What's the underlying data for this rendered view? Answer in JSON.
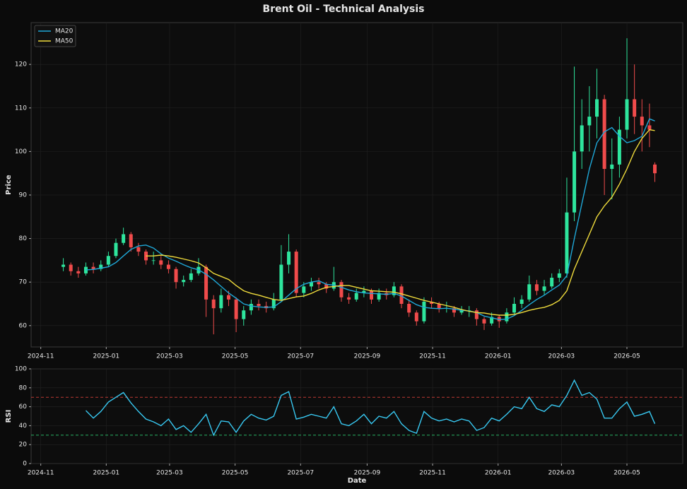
{
  "chart_data": [
    {
      "type": "candlestick",
      "title": "Brent Oil - Technical Analysis",
      "y_label": "Price",
      "x": [
        "2024-11-22",
        "2024-11-29",
        "2024-12-06",
        "2024-12-13",
        "2024-12-20",
        "2024-12-27",
        "2025-01-03",
        "2025-01-10",
        "2025-01-17",
        "2025-01-24",
        "2025-01-31",
        "2025-02-07",
        "2025-02-14",
        "2025-02-21",
        "2025-02-28",
        "2025-03-07",
        "2025-03-14",
        "2025-03-21",
        "2025-03-28",
        "2025-04-04",
        "2025-04-11",
        "2025-04-18",
        "2025-04-25",
        "2025-05-02",
        "2025-05-09",
        "2025-05-16",
        "2025-05-23",
        "2025-05-30",
        "2025-06-06",
        "2025-06-13",
        "2025-06-20",
        "2025-06-27",
        "2025-07-04",
        "2025-07-11",
        "2025-07-18",
        "2025-07-25",
        "2025-08-01",
        "2025-08-08",
        "2025-08-15",
        "2025-08-22",
        "2025-08-29",
        "2025-09-05",
        "2025-09-12",
        "2025-09-19",
        "2025-09-26",
        "2025-10-03",
        "2025-10-10",
        "2025-10-17",
        "2025-10-24",
        "2025-10-31",
        "2025-11-07",
        "2025-11-14",
        "2025-11-21",
        "2025-11-28",
        "2025-12-05",
        "2025-12-12",
        "2025-12-19",
        "2025-12-26",
        "2026-01-02",
        "2026-01-09",
        "2026-01-16",
        "2026-01-23",
        "2026-01-30",
        "2026-02-06",
        "2026-02-13",
        "2026-02-20",
        "2026-02-27",
        "2026-03-06",
        "2026-03-13",
        "2026-03-20",
        "2026-03-27",
        "2026-04-03",
        "2026-04-10",
        "2026-04-17",
        "2026-04-24",
        "2026-05-01",
        "2026-05-08",
        "2026-05-15",
        "2026-05-22",
        "2026-05-27"
      ],
      "open": [
        73.5,
        74,
        72.5,
        72,
        73.5,
        73,
        74,
        76,
        79,
        81,
        78,
        77,
        75,
        75,
        74,
        73,
        70,
        70.5,
        72,
        73.5,
        66,
        64,
        67,
        66,
        61.5,
        63.5,
        65,
        64.5,
        64,
        66,
        74,
        77,
        67.5,
        69,
        70,
        69.5,
        68.5,
        70,
        66.5,
        66,
        67.5,
        68,
        66,
        67.5,
        67,
        69,
        65,
        63,
        61,
        65.5,
        65,
        64,
        64,
        63,
        63.5,
        63.5,
        61.5,
        60.5,
        62,
        61,
        63,
        65,
        66,
        69.5,
        68,
        69,
        71,
        72,
        86,
        100,
        106,
        108,
        112,
        96,
        97,
        105,
        112,
        108,
        106,
        97
      ],
      "high": [
        75.5,
        74.5,
        73.5,
        74.5,
        74.5,
        75,
        77,
        80,
        82.5,
        81.5,
        79,
        77.5,
        77,
        76,
        75,
        73.5,
        71.5,
        73,
        75.5,
        74,
        67,
        68.5,
        68,
        66.5,
        64.5,
        66,
        66,
        65.5,
        67.5,
        78.5,
        81,
        77.5,
        70,
        71,
        71,
        70,
        73.5,
        70.5,
        67.5,
        68.5,
        69,
        68.5,
        68.5,
        68.5,
        70,
        69.5,
        66,
        63.5,
        66.5,
        66.5,
        65.5,
        65.5,
        64.5,
        64.5,
        64.5,
        64,
        62,
        63,
        62.5,
        64,
        66.5,
        67,
        71.5,
        70.5,
        70.5,
        72,
        73,
        94,
        119.5,
        112,
        115,
        119,
        113,
        103,
        108,
        126,
        120,
        112,
        111,
        97.5
      ],
      "low": [
        72.5,
        71.5,
        71,
        71.5,
        72,
        72.5,
        73.5,
        75.5,
        78.5,
        77,
        76,
        74,
        74,
        73,
        72,
        68.5,
        69,
        70,
        71.5,
        62,
        58,
        63,
        64.5,
        58.5,
        60,
        62.5,
        63.5,
        63,
        63.5,
        65.5,
        72,
        66.5,
        66.5,
        68,
        68.5,
        67.5,
        68,
        65.5,
        65,
        65.5,
        66.5,
        65,
        65.5,
        66,
        66.5,
        64,
        62,
        60,
        60.5,
        64,
        63,
        63,
        62,
        62.5,
        62,
        60,
        59,
        60,
        59.5,
        60.5,
        62.5,
        64,
        65.5,
        67,
        67,
        68.5,
        70,
        71,
        84,
        96,
        100,
        103,
        90,
        89,
        94,
        103,
        104,
        100,
        101,
        93
      ],
      "close": [
        74,
        72.5,
        72,
        73.5,
        73,
        74,
        76,
        79,
        81,
        78,
        77,
        75,
        75,
        74,
        73,
        70,
        70.5,
        72,
        73.5,
        66,
        64,
        67,
        66,
        61.5,
        63.5,
        65,
        64.5,
        64,
        66,
        74,
        77,
        67.5,
        69,
        70,
        69.5,
        68.5,
        70,
        66.5,
        66,
        67.5,
        68,
        66,
        67.5,
        67,
        69,
        65,
        63,
        61,
        65.5,
        65,
        64,
        64,
        63,
        63.5,
        63.5,
        61.5,
        60.5,
        62,
        61,
        63,
        65,
        66,
        69.5,
        68,
        69,
        71,
        72,
        86,
        100,
        106,
        108,
        112,
        96,
        97,
        105,
        112,
        108,
        106,
        105,
        95
      ],
      "up_color": "#2ee59d",
      "down_color": "#f04b4b",
      "series": [
        {
          "name": "MA20",
          "color": "#1fa8d8",
          "values": [
            null,
            null,
            null,
            72.8,
            72.9,
            73.2,
            73.5,
            74.5,
            76,
            77.5,
            78.3,
            78.5,
            77.8,
            76.5,
            75.5,
            74.8,
            74,
            73.3,
            72.8,
            71.8,
            70.5,
            69,
            67.5,
            66.3,
            65,
            64.5,
            64.3,
            64.2,
            64.3,
            65.5,
            67,
            68.5,
            69.5,
            70,
            70.3,
            69.5,
            69.3,
            68.8,
            68.2,
            67.8,
            67.5,
            67.4,
            67.3,
            67.2,
            67.4,
            66.8,
            65.8,
            64.8,
            64.2,
            64,
            63.9,
            64,
            63.8,
            63.5,
            63.4,
            63,
            62.2,
            61.8,
            61.4,
            61.5,
            62.3,
            63.5,
            64.8,
            66,
            67,
            68.2,
            69.3,
            71.5,
            80,
            88,
            96,
            102,
            104.5,
            105.5,
            103.5,
            102,
            102.5,
            103.5,
            107.5,
            107
          ]
        },
        {
          "name": "MA50",
          "color": "#f0dc3c",
          "values": [
            null,
            null,
            null,
            null,
            null,
            null,
            null,
            null,
            null,
            null,
            null,
            76,
            76,
            76.2,
            76,
            75.7,
            75.3,
            74.9,
            74.4,
            73.3,
            72,
            71.3,
            70.6,
            69.2,
            68,
            67.4,
            67,
            66.5,
            66,
            65.8,
            66.2,
            66.6,
            66.8,
            67.4,
            68.2,
            68.8,
            69,
            69.2,
            69.2,
            68.8,
            68.4,
            68,
            67.9,
            67.8,
            67.7,
            67.3,
            66.8,
            66.3,
            65.8,
            65.4,
            65,
            64.6,
            64.2,
            63.7,
            63.3,
            63,
            62.9,
            62.6,
            62.4,
            62.4,
            62.6,
            63,
            63.5,
            63.9,
            64.2,
            64.8,
            65.8,
            68,
            73,
            77,
            81,
            85,
            87.5,
            89.5,
            92.5,
            96,
            100,
            103,
            105,
            104.8
          ]
        }
      ],
      "legend": "upper left",
      "xlim": [
        "2024-10-23",
        "2026-06-22"
      ],
      "xticks": [
        {
          "value": "2024-11-01",
          "label": "2024-11"
        },
        {
          "value": "2025-01-01",
          "label": "2025-01"
        },
        {
          "value": "2025-03-01",
          "label": "2025-03"
        },
        {
          "value": "2025-05-01",
          "label": "2025-05"
        },
        {
          "value": "2025-07-01",
          "label": "2025-07"
        },
        {
          "value": "2025-09-01",
          "label": "2025-09"
        },
        {
          "value": "2025-11-01",
          "label": "2025-11"
        },
        {
          "value": "2026-01-01",
          "label": "2026-01"
        },
        {
          "value": "2026-03-01",
          "label": "2026-03"
        },
        {
          "value": "2026-05-01",
          "label": "2026-05"
        }
      ],
      "ylim": [
        55.1,
        129.6
      ],
      "yticks": [
        60,
        70,
        80,
        90,
        100,
        110,
        120
      ],
      "grid": true
    },
    {
      "type": "line",
      "y_label": "RSI",
      "x_label": "Date",
      "x": [
        "2024-11-22",
        "2024-11-29",
        "2024-12-06",
        "2024-12-13",
        "2024-12-20",
        "2024-12-27",
        "2025-01-03",
        "2025-01-10",
        "2025-01-17",
        "2025-01-24",
        "2025-01-31",
        "2025-02-07",
        "2025-02-14",
        "2025-02-21",
        "2025-02-28",
        "2025-03-07",
        "2025-03-14",
        "2025-03-21",
        "2025-03-28",
        "2025-04-04",
        "2025-04-11",
        "2025-04-18",
        "2025-04-25",
        "2025-05-02",
        "2025-05-09",
        "2025-05-16",
        "2025-05-23",
        "2025-05-30",
        "2025-06-06",
        "2025-06-13",
        "2025-06-20",
        "2025-06-27",
        "2025-07-04",
        "2025-07-11",
        "2025-07-18",
        "2025-07-25",
        "2025-08-01",
        "2025-08-08",
        "2025-08-15",
        "2025-08-22",
        "2025-08-29",
        "2025-09-05",
        "2025-09-12",
        "2025-09-19",
        "2025-09-26",
        "2025-10-03",
        "2025-10-10",
        "2025-10-17",
        "2025-10-24",
        "2025-10-31",
        "2025-11-07",
        "2025-11-14",
        "2025-11-21",
        "2025-11-28",
        "2025-12-05",
        "2025-12-12",
        "2025-12-19",
        "2025-12-26",
        "2026-01-02",
        "2026-01-09",
        "2026-01-16",
        "2026-01-23",
        "2026-01-30",
        "2026-02-06",
        "2026-02-13",
        "2026-02-20",
        "2026-02-27",
        "2026-03-06",
        "2026-03-13",
        "2026-03-20",
        "2026-03-27",
        "2026-04-03",
        "2026-04-10",
        "2026-04-17",
        "2026-04-24",
        "2026-05-01",
        "2026-05-08",
        "2026-05-15",
        "2026-05-22",
        "2026-05-27"
      ],
      "values": [
        null,
        null,
        null,
        56,
        48,
        55,
        65,
        70,
        75,
        64,
        55,
        47,
        44,
        40,
        47,
        36,
        40,
        33,
        42,
        52,
        30,
        45,
        44,
        33,
        45,
        52,
        48,
        46,
        50,
        72,
        76,
        47,
        49,
        52,
        50,
        48,
        60,
        42,
        40,
        45,
        52,
        42,
        50,
        48,
        55,
        42,
        35,
        32,
        55,
        48,
        45,
        47,
        44,
        47,
        45,
        35,
        38,
        48,
        45,
        52,
        60,
        58,
        70,
        58,
        55,
        62,
        60,
        72,
        88,
        72,
        75,
        68,
        48,
        48,
        58,
        65,
        50,
        52,
        55,
        42
      ],
      "color": "#38c9f2",
      "hlines": [
        {
          "y": 70,
          "color": "#d9413a"
        },
        {
          "y": 30,
          "color": "#2ecc71"
        }
      ],
      "xlim": [
        "2024-10-23",
        "2026-06-22"
      ],
      "xticks": [
        {
          "value": "2024-11-01",
          "label": "2024-11"
        },
        {
          "value": "2025-01-01",
          "label": "2025-01"
        },
        {
          "value": "2025-03-01",
          "label": "2025-03"
        },
        {
          "value": "2025-05-01",
          "label": "2025-05"
        },
        {
          "value": "2025-07-01",
          "label": "2025-07"
        },
        {
          "value": "2025-09-01",
          "label": "2025-09"
        },
        {
          "value": "2025-11-01",
          "label": "2025-11"
        },
        {
          "value": "2026-01-01",
          "label": "2026-01"
        },
        {
          "value": "2026-03-01",
          "label": "2026-03"
        },
        {
          "value": "2026-05-01",
          "label": "2026-05"
        }
      ],
      "ylim": [
        0,
        100
      ],
      "yticks": [
        0,
        20,
        40,
        60,
        80,
        100
      ],
      "grid": true
    }
  ]
}
